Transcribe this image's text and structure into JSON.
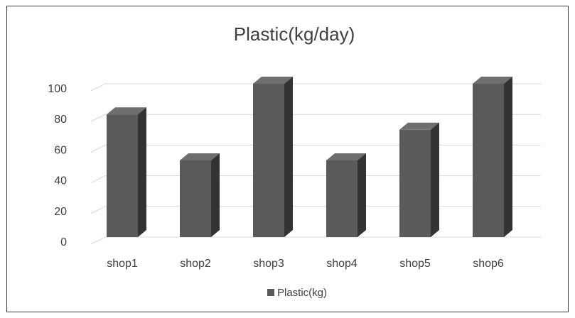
{
  "chart_data": {
    "type": "bar",
    "title": "Plastic(kg/day)",
    "categories": [
      "shop1",
      "shop2",
      "shop3",
      "shop4",
      "shop5",
      "shop6"
    ],
    "series": [
      {
        "name": "Plastic(kg)",
        "values": [
          80,
          50,
          100,
          50,
          70,
          100
        ]
      }
    ],
    "ylim": [
      0,
      100
    ],
    "yticks": [
      "0",
      "20",
      "40",
      "60",
      "80",
      "100"
    ],
    "grid": true,
    "legend_position": "bottom",
    "colors": {
      "bar_front": "#5a5a5a",
      "bar_top": "#6e6e6e",
      "bar_side": "#333333",
      "grid": "#d9d9d9",
      "text": "#404040"
    }
  }
}
